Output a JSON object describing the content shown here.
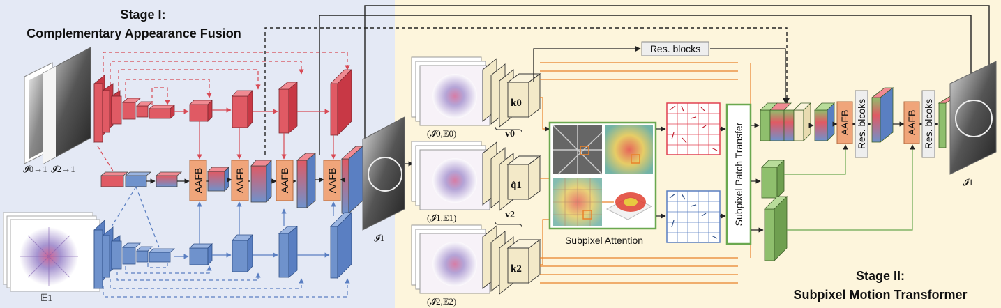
{
  "stage1": {
    "title_line1": "Stage I:",
    "title_line2": "Complementary Appearance Fusion"
  },
  "stage2": {
    "title_line1": "Stage II:",
    "title_line2": "Subpixel Motion Transformer"
  },
  "inputs": {
    "frame0_label": "𝓘0→1",
    "frame2_label": "𝓘2→1",
    "event_label": "𝔼1"
  },
  "fusion_blocks": [
    "AAFB",
    "AAFB",
    "AAFB",
    "AAFB"
  ],
  "stage1_output_label": "𝓘̂1",
  "encoder_rows": [
    {
      "pair": "(𝓘0,𝔼0)",
      "key": "k0",
      "value": "v0"
    },
    {
      "pair": "(𝓘̂1,𝔼1)",
      "key": "q̂1",
      "value": "v2"
    },
    {
      "pair": "(𝓘2,𝔼2)",
      "key": "k2",
      "value": ""
    }
  ],
  "attention_label": "Subpixel Attention",
  "patch_transfer_label": "Subpixel Patch Transfer",
  "res_blocks_label": "Res. blocks",
  "decoder": {
    "aafb_1": "AAFB",
    "res_1": "Res. blcoks",
    "aafb_2": "AAFB",
    "res_2": "Res. blcoks"
  },
  "final_output_label": "𝓘̂1",
  "colors": {
    "stage1_bg": "#e4e9f5",
    "stage2_bg": "#fdf5dc",
    "red": "#e05a64",
    "blue": "#6f92cc",
    "green": "#8fbf6d",
    "aafb": "#f0a57a",
    "orange_line": "#e9822a"
  }
}
